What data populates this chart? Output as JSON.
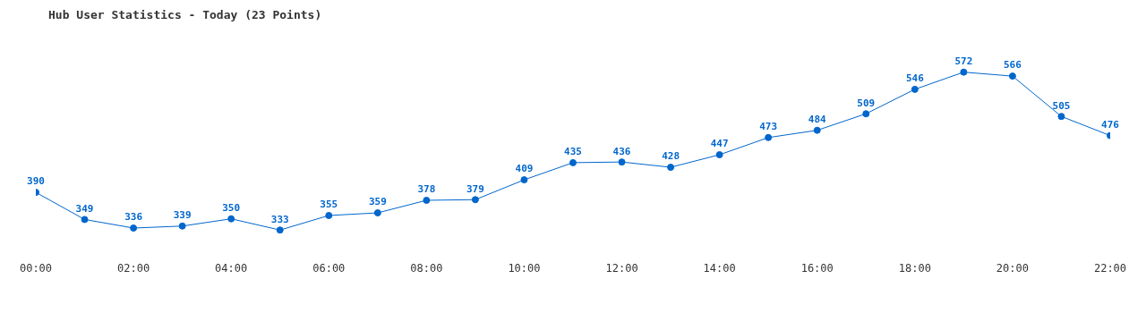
{
  "chart_data": {
    "type": "line",
    "title": "Hub User Statistics - Today (23 Points)",
    "x": [
      0,
      1,
      2,
      3,
      4,
      5,
      6,
      7,
      8,
      9,
      10,
      11,
      12,
      13,
      14,
      15,
      16,
      17,
      18,
      19,
      20,
      21,
      22
    ],
    "series": [
      {
        "color": "#0066cc",
        "values": [
          390,
          349,
          336,
          339,
          350,
          333,
          355,
          359,
          378,
          379,
          409,
          435,
          436,
          428,
          447,
          473,
          484,
          509,
          546,
          572,
          566,
          505,
          476
        ]
      }
    ],
    "xlim": [
      0,
      22
    ],
    "xticks": [
      {
        "value": 0,
        "label": "00:00"
      },
      {
        "value": 2,
        "label": "02:00"
      },
      {
        "value": 4,
        "label": "04:00"
      },
      {
        "value": 6,
        "label": "06:00"
      },
      {
        "value": 8,
        "label": "08:00"
      },
      {
        "value": 10,
        "label": "10:00"
      },
      {
        "value": 12,
        "label": "12:00"
      },
      {
        "value": 14,
        "label": "14:00"
      },
      {
        "value": 16,
        "label": "16:00"
      },
      {
        "value": 18,
        "label": "18:00"
      },
      {
        "value": 20,
        "label": "20:00"
      },
      {
        "value": 22,
        "label": "22:00"
      }
    ],
    "tick_labels": "x",
    "grid": false,
    "legend": false,
    "marker": "circle",
    "line_style": "solid",
    "data_labels": true
  }
}
